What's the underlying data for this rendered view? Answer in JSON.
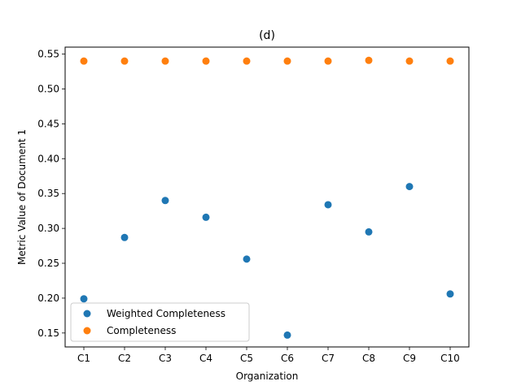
{
  "chart_data": {
    "type": "scatter",
    "title": "(d)",
    "xlabel": "Organization",
    "ylabel": "Metric Value of Document 1",
    "categories": [
      "C1",
      "C2",
      "C3",
      "C4",
      "C5",
      "C6",
      "C7",
      "C8",
      "C9",
      "C10"
    ],
    "ylim": [
      0.13,
      0.56
    ],
    "yticks": [
      "0.15",
      "0.20",
      "0.25",
      "0.30",
      "0.35",
      "0.40",
      "0.45",
      "0.50",
      "0.55"
    ],
    "grid": false,
    "legend_position": "lower-left",
    "series": [
      {
        "name": "Weighted Completeness",
        "color": "#1f77b4",
        "values": [
          0.199,
          0.287,
          0.34,
          0.316,
          0.256,
          0.147,
          0.334,
          0.295,
          0.36,
          0.206
        ]
      },
      {
        "name": "Completeness",
        "color": "#ff7f0e",
        "values": [
          0.54,
          0.54,
          0.54,
          0.54,
          0.54,
          0.54,
          0.54,
          0.541,
          0.54,
          0.54
        ]
      }
    ]
  }
}
